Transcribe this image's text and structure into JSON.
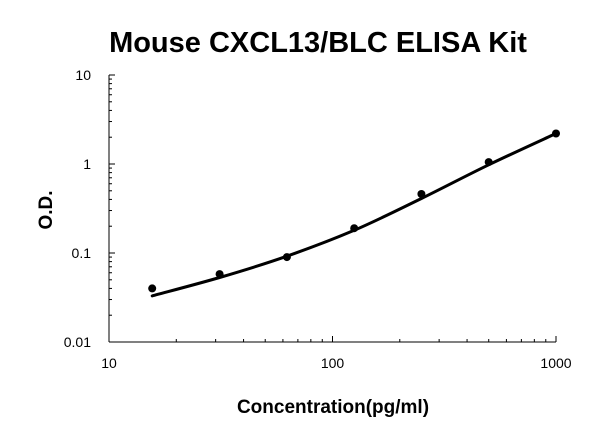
{
  "chart_data": {
    "type": "scatter",
    "title": "Mouse CXCL13/BLC ELISA Kit",
    "xlabel": "Concentration(pg/ml)",
    "ylabel": "O.D.",
    "xscale": "log",
    "yscale": "log",
    "xlim": [
      10,
      1000
    ],
    "ylim": [
      0.01,
      10
    ],
    "grid": false,
    "legend": "none",
    "x_ticks": [
      {
        "value": 10,
        "label": "10"
      },
      {
        "value": 100,
        "label": "100"
      },
      {
        "value": 1000,
        "label": "1000"
      }
    ],
    "y_ticks": [
      {
        "value": 10,
        "label": "10"
      },
      {
        "value": 1,
        "label": "1"
      },
      {
        "value": 0.1,
        "label": "0.1"
      },
      {
        "value": 0.01,
        "label": "0.01"
      }
    ],
    "series": [
      {
        "type": "scatter",
        "x": [
          15.6,
          31.25,
          62.5,
          125,
          250,
          500,
          1000
        ],
        "y": [
          0.04,
          0.058,
          0.09,
          0.19,
          0.46,
          1.05,
          2.2
        ]
      },
      {
        "type": "line",
        "x": [
          15.6,
          31.25,
          62.5,
          125,
          250,
          500,
          1000
        ],
        "y": [
          0.033,
          0.053,
          0.092,
          0.18,
          0.41,
          0.98,
          2.2
        ]
      }
    ],
    "colors": {
      "points": "#000000",
      "curve": "#000000",
      "axes": "#000000"
    }
  }
}
